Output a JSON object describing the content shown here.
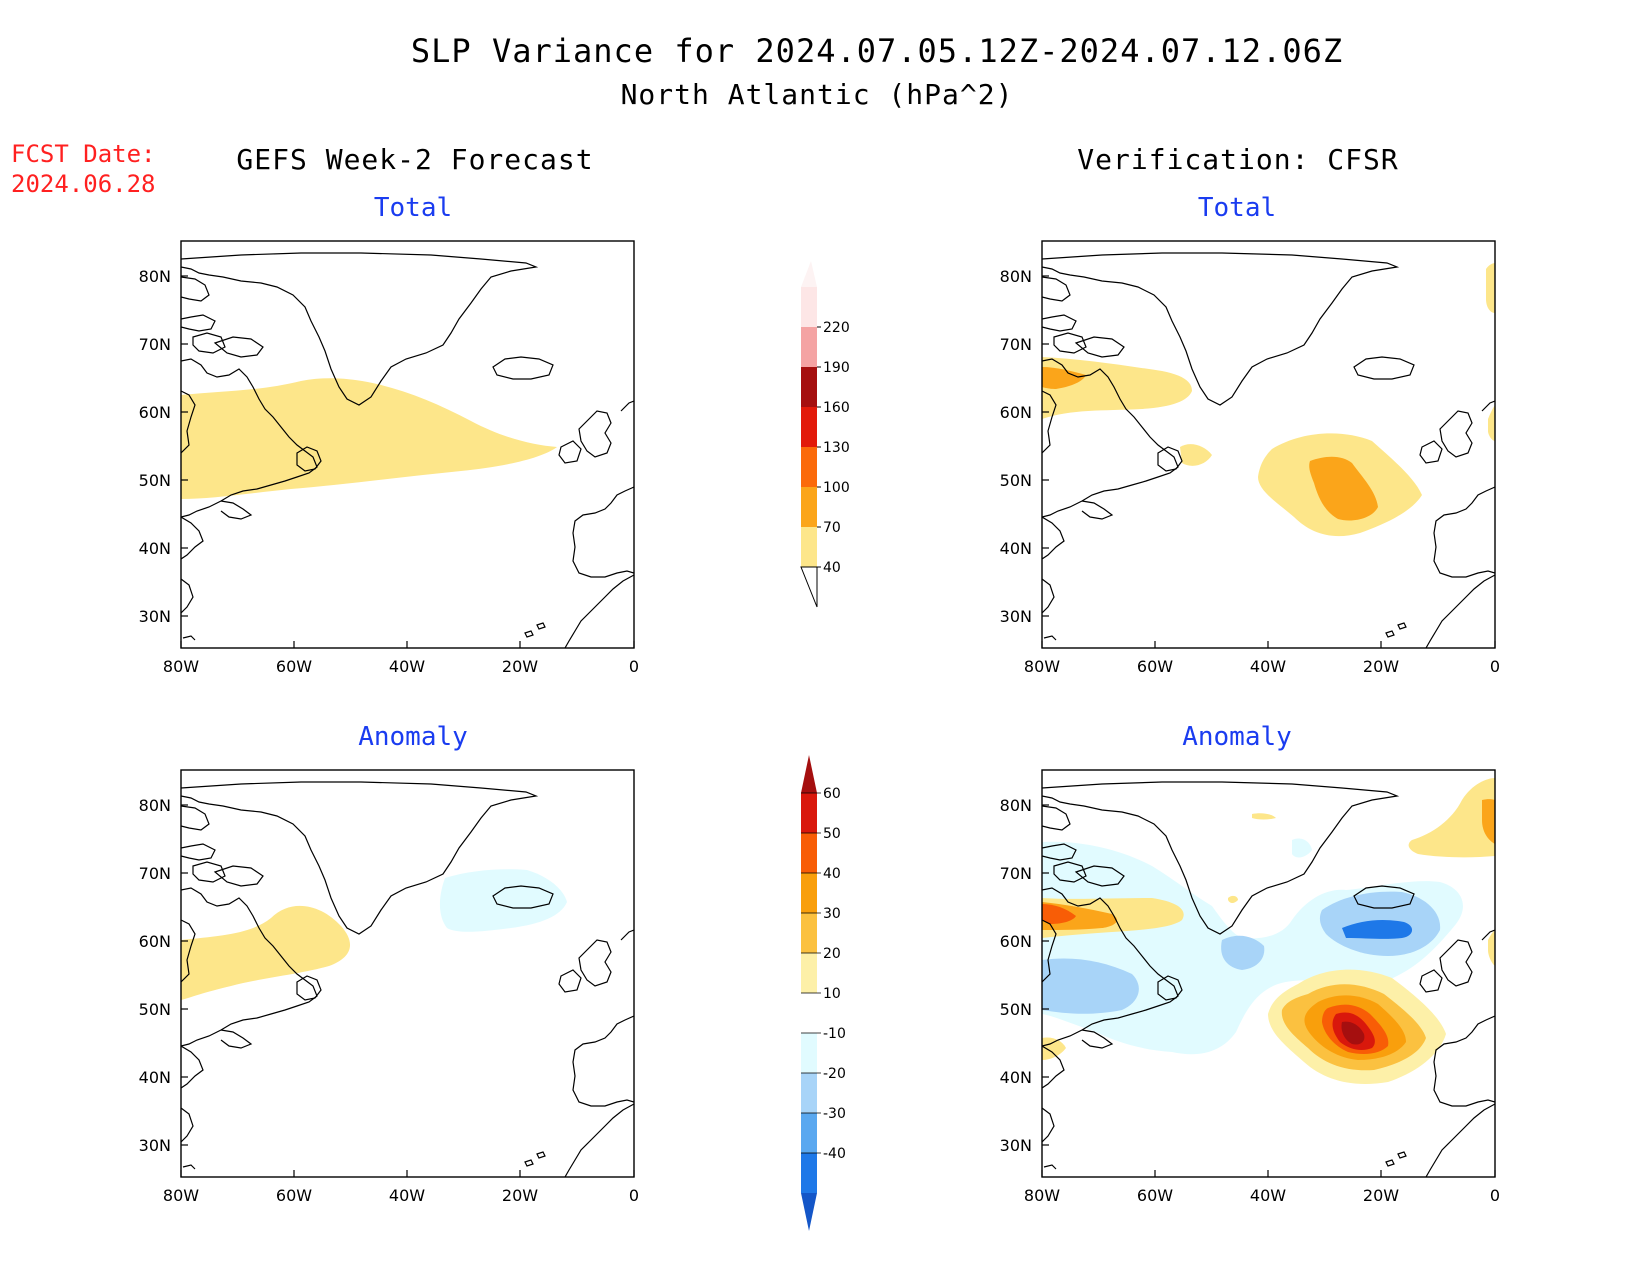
{
  "title": "SLP Variance for 2024.07.05.12Z-2024.07.12.06Z",
  "subtitle": "North Atlantic (hPa^2)",
  "fcst_date": {
    "label": "FCST Date:",
    "value": "2024.06.28"
  },
  "columns": {
    "left": "GEFS Week-2 Forecast",
    "right": "Verification: CFSR"
  },
  "row_labels": {
    "total": "Total",
    "anomaly": "Anomaly"
  },
  "axes": {
    "lat_ticks": [
      "80N",
      "70N",
      "60N",
      "50N",
      "40N",
      "30N"
    ],
    "lon_ticks": [
      "80W",
      "60W",
      "40W",
      "20W",
      "0"
    ]
  },
  "colorbars": {
    "total": {
      "levels": [
        "40",
        "70",
        "100",
        "130",
        "160",
        "190",
        "220"
      ],
      "colors": [
        "#fde68a",
        "#fba51a",
        "#fb6a0a",
        "#e21a0a",
        "#a50f0f",
        "#f4a3a3",
        "#fde6e6"
      ]
    },
    "anomaly": {
      "levels": [
        "60",
        "50",
        "40",
        "30",
        "20",
        "10",
        "-10",
        "-20",
        "-30",
        "-40"
      ],
      "colors": [
        "#a50f0f",
        "#d9180c",
        "#f85d06",
        "#f99f0c",
        "#fbc140",
        "#fdf0a8",
        "#ffffff",
        "#e1fbff",
        "#a8d4f8",
        "#5aa8f0",
        "#1e78e8",
        "#1456c8"
      ]
    }
  },
  "colors": {
    "fcst": "#ff2020",
    "panel_label": "#1a3cf0"
  }
}
